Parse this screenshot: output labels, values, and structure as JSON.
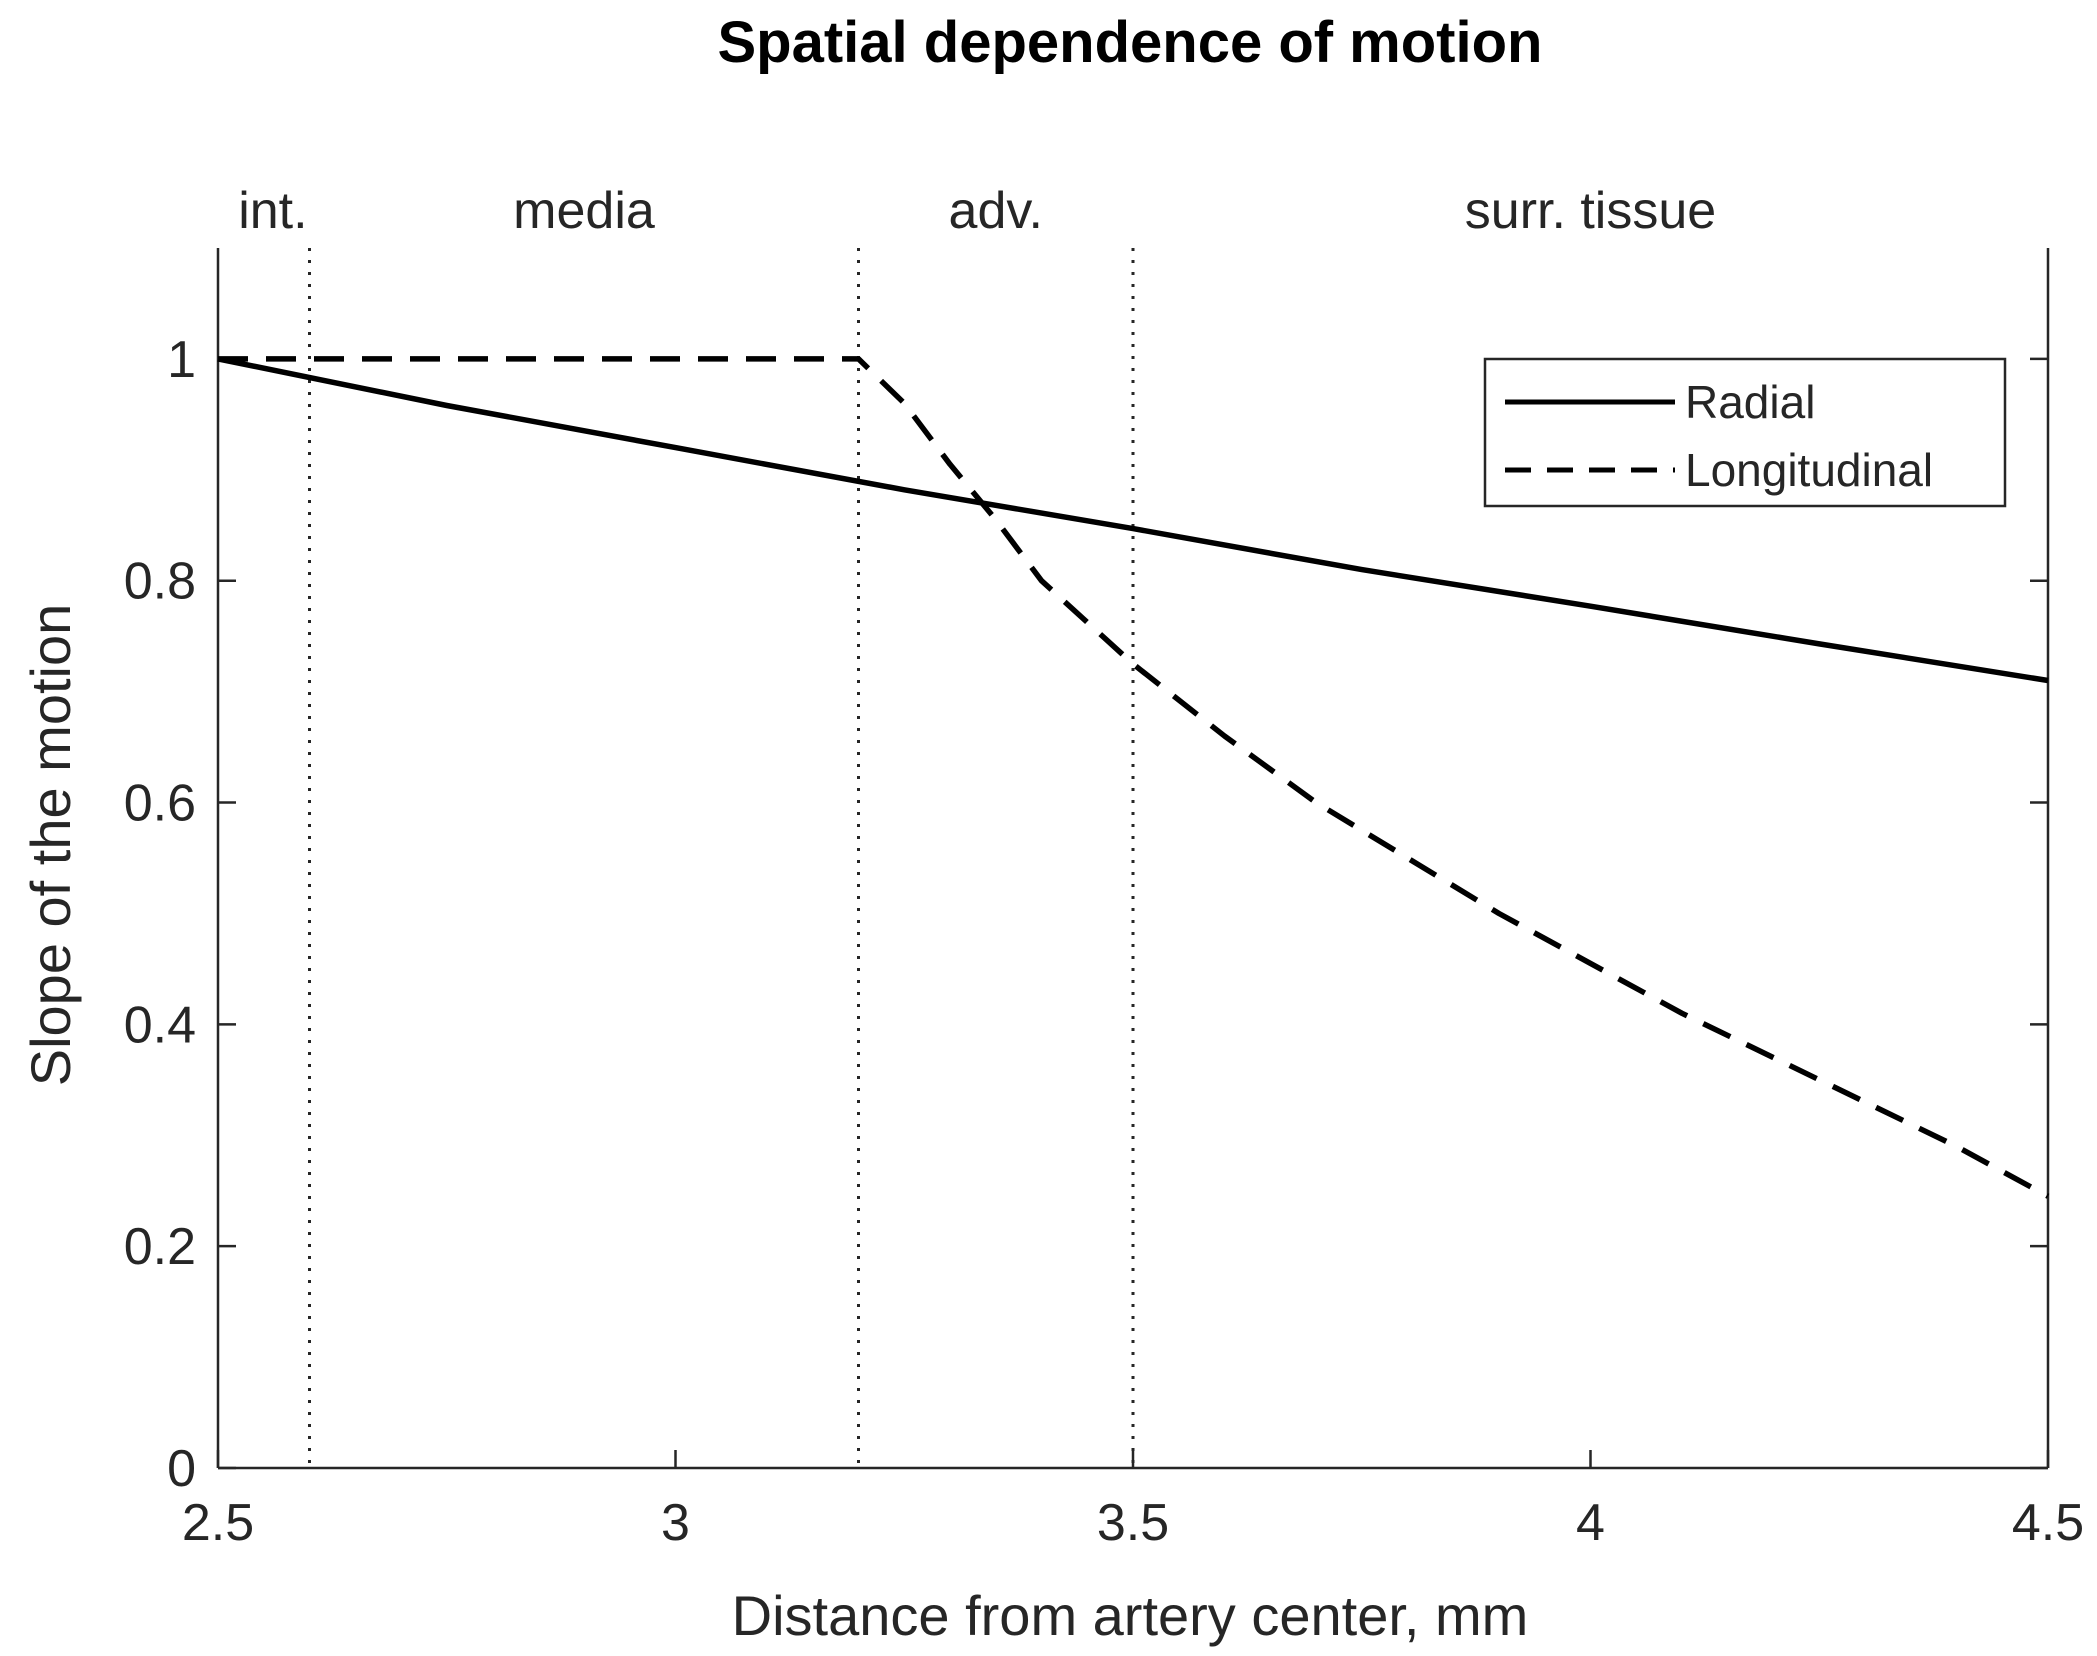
{
  "chart_data": {
    "type": "line",
    "title": "Spatial dependence of motion",
    "xlabel": "Distance from artery center, mm",
    "ylabel": "Slope of the motion",
    "xlim": [
      2.5,
      4.5
    ],
    "ylim": [
      0,
      1.1
    ],
    "xticks": [
      2.5,
      3,
      3.5,
      4,
      4.5
    ],
    "xtick_labels": [
      "2.5",
      "3",
      "3.5",
      "4",
      "4.5"
    ],
    "yticks": [
      0,
      0.2,
      0.4,
      0.6,
      0.8,
      1
    ],
    "ytick_labels": [
      "0",
      "0.2",
      "0.4",
      "0.6",
      "0.8",
      "1"
    ],
    "grid": false,
    "legend_position": "top-right",
    "boundaries": [
      2.6,
      3.2,
      3.5
    ],
    "regions": [
      {
        "label": "int.",
        "x": 2.56
      },
      {
        "label": "media",
        "x": 2.9
      },
      {
        "label": "adv.",
        "x": 3.35
      },
      {
        "label": "surr. tissue",
        "x": 4.0
      }
    ],
    "series": [
      {
        "name": "Radial",
        "style": "solid",
        "x": [
          2.5,
          2.75,
          3.0,
          3.25,
          3.5,
          3.75,
          4.0,
          4.25,
          4.5
        ],
        "y": [
          1.0,
          0.958,
          0.92,
          0.882,
          0.847,
          0.81,
          0.777,
          0.743,
          0.71
        ]
      },
      {
        "name": "Longitudinal",
        "style": "dashed",
        "x": [
          2.5,
          3.2,
          3.25,
          3.3,
          3.35,
          3.4,
          3.5,
          3.6,
          3.7,
          3.8,
          3.9,
          4.0,
          4.1,
          4.2,
          4.3,
          4.4,
          4.5
        ],
        "y": [
          1.0,
          1.0,
          0.96,
          0.905,
          0.855,
          0.8,
          0.725,
          0.66,
          0.6,
          0.55,
          0.5,
          0.455,
          0.41,
          0.37,
          0.33,
          0.29,
          0.245
        ]
      }
    ]
  }
}
